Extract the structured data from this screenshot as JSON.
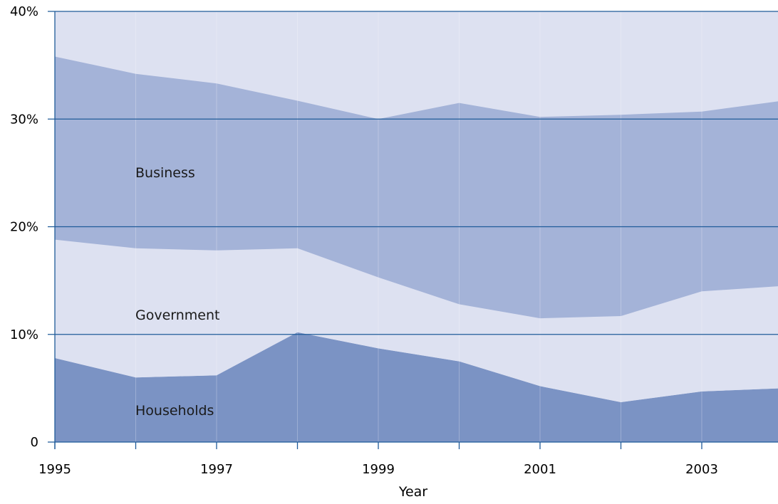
{
  "chart_data": {
    "type": "area",
    "stacked": true,
    "x": [
      1995,
      1996,
      1997,
      1998,
      1999,
      2000,
      2001,
      2002,
      2003,
      2004
    ],
    "xlabel": "Year",
    "ylabel": "",
    "xlim": [
      1995,
      2004
    ],
    "ylim": [
      0,
      40
    ],
    "x_tick_labels": [
      "1995",
      "1997",
      "1999",
      "2001",
      "2003"
    ],
    "y_tick_labels": [
      "0",
      "10%",
      "20%",
      "30%",
      "40%"
    ],
    "grid": "horizontal",
    "legend": "inline labels",
    "series": [
      {
        "name": "Households",
        "values": [
          7.8,
          6.0,
          6.2,
          10.2,
          8.7,
          7.5,
          5.2,
          3.7,
          4.7,
          5.0
        ],
        "color": "#7b93c4"
      },
      {
        "name": "Government",
        "values": [
          11.0,
          12.0,
          11.6,
          7.8,
          6.6,
          5.3,
          6.3,
          8.0,
          9.3,
          9.5
        ],
        "color": "#dde1f1"
      },
      {
        "name": "Business",
        "values": [
          17.0,
          16.2,
          15.5,
          13.7,
          14.7,
          18.7,
          18.7,
          18.7,
          16.7,
          17.2
        ],
        "color": "#a4b3d8"
      }
    ],
    "remainder_color": "#dde1f1",
    "axis_color": "#1f5b99"
  }
}
